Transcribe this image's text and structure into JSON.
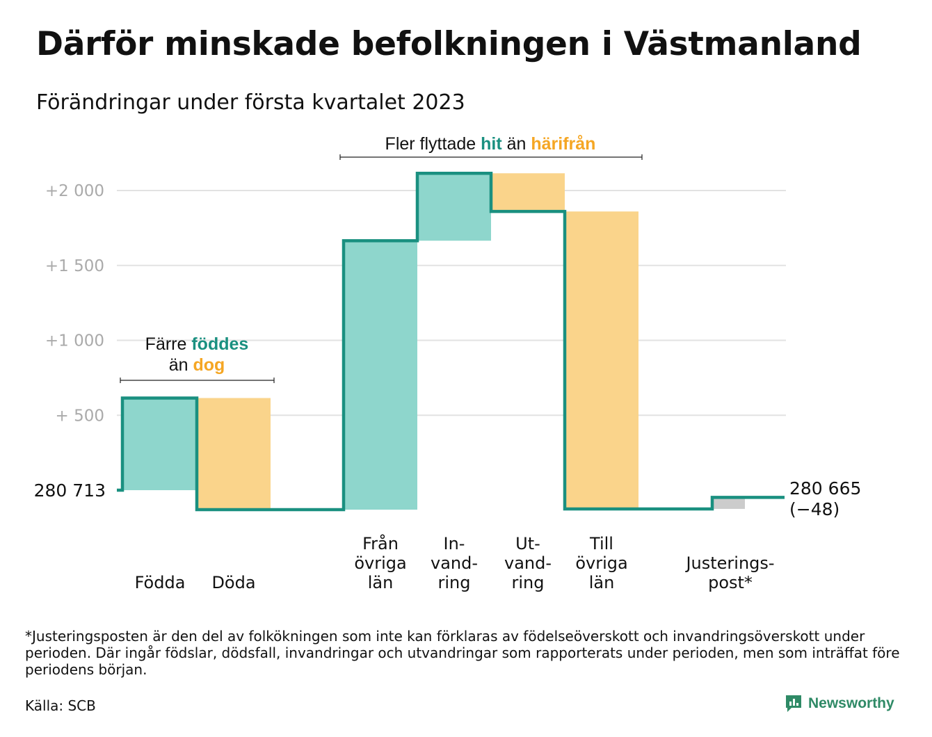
{
  "title": "Därför minskade befolkningen i Västmanland",
  "subtitle": "Förändringar under första kvartalet 2023",
  "colors": {
    "increase": "#8ed6cc",
    "decrease": "#fad48b",
    "adjustment": "#cccccc",
    "line": "#1a9080",
    "accent_teal": "#1a9080",
    "accent_orange": "#f5a623",
    "grid": "#e2e2e2",
    "tick_text": "#aaaaaa"
  },
  "annotations": {
    "births": {
      "line1_a": "Färre ",
      "line1_b": "föddes",
      "line2_a": "än ",
      "line2_b": "dog"
    },
    "migration": {
      "a": "Fler flyttade ",
      "b": "hit",
      "c": " än ",
      "d": "härifrån"
    }
  },
  "chart_data": {
    "type": "waterfall",
    "title": "Därför minskade befolkningen i Västmanland",
    "subtitle": "Förändringar under första kvartalet 2023",
    "start_value": 280713,
    "start_label": "280 713",
    "end_value": 280665,
    "end_label": "280 665",
    "net_change_label": "(−48)",
    "y_axis": {
      "unit": "change from start",
      "ticks": [
        {
          "value": 500,
          "label": "+ 500"
        },
        {
          "value": 1000,
          "label": "+1 000"
        },
        {
          "value": 1500,
          "label": "+1 500"
        },
        {
          "value": 2000,
          "label": "+2 000"
        }
      ],
      "ylim": [
        -150,
        2150
      ],
      "grid": true
    },
    "categories": [
      {
        "label": [
          "Födda"
        ],
        "value": 615,
        "kind": "increase"
      },
      {
        "label": [
          "Döda"
        ],
        "value": -745,
        "kind": "decrease"
      },
      {
        "label": [
          "Från",
          "övriga",
          "län"
        ],
        "value": 1795,
        "kind": "increase"
      },
      {
        "label": [
          "In-",
          "vand-",
          "ring"
        ],
        "value": 450,
        "kind": "increase"
      },
      {
        "label": [
          "Ut-",
          "vand-",
          "ring"
        ],
        "value": -255,
        "kind": "decrease"
      },
      {
        "label": [
          "Till",
          "övriga",
          "län"
        ],
        "value": -1985,
        "kind": "decrease"
      },
      {
        "label": [
          "Justerings-",
          "post*"
        ],
        "value": 77,
        "kind": "adjustment"
      }
    ]
  },
  "footnote": "*Justeringsposten är den del av folkökningen som inte kan förklaras av födelseöverskott och invandringsöverskott under perioden. Där ingår födslar, dödsfall, invandringar och utvandringar som rapporterats under perioden, men som inträffat före periodens början.",
  "source": "Källa: SCB",
  "brand": "Newsworthy"
}
